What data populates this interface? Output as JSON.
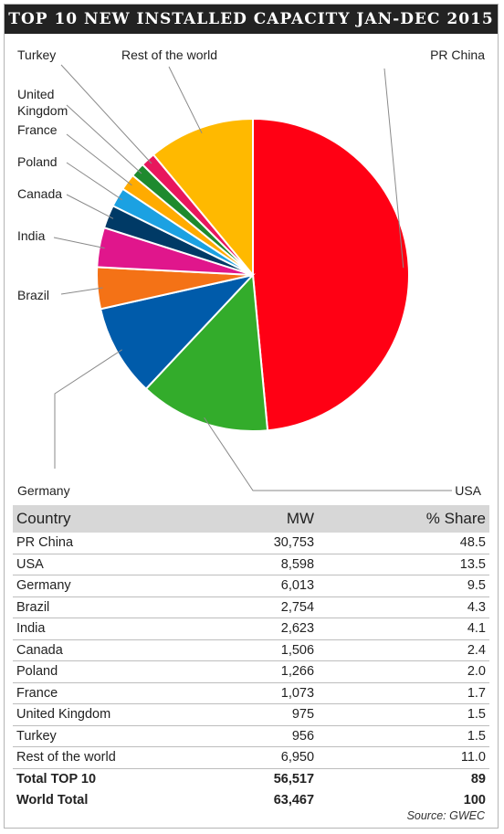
{
  "title": "TOP 10 NEW INSTALLED CAPACITY JAN-DEC 2015",
  "source": "Source: GWEC",
  "colors": {
    "title_bar": "#222222",
    "table_header": "#d7d7d7"
  },
  "chart_data": {
    "type": "pie",
    "title": "TOP 10 NEW INSTALLED CAPACITY JAN-DEC 2015",
    "start_angle_deg": 0,
    "direction": "clockwise",
    "slices": [
      {
        "label": "PR China",
        "value": 48.5,
        "color": "#ff0014"
      },
      {
        "label": "USA",
        "value": 13.5,
        "color": "#33ac2b"
      },
      {
        "label": "Germany",
        "value": 9.5,
        "color": "#005baa"
      },
      {
        "label": "Brazil",
        "value": 4.3,
        "color": "#f47216"
      },
      {
        "label": "India",
        "value": 4.1,
        "color": "#e0168c"
      },
      {
        "label": "Canada",
        "value": 2.4,
        "color": "#003a66"
      },
      {
        "label": "Poland",
        "value": 2.0,
        "color": "#1ba1e2"
      },
      {
        "label": "France",
        "value": 1.7,
        "color": "#ffab00"
      },
      {
        "label": "United Kingdom",
        "value": 1.5,
        "color": "#1e8a2e"
      },
      {
        "label": "Turkey",
        "value": 1.5,
        "color": "#e8175d"
      },
      {
        "label": "Rest of the world",
        "value": 11.0,
        "color": "#ffb900"
      }
    ]
  },
  "table": {
    "headers": [
      "Country",
      "MW",
      "% Share"
    ],
    "rows": [
      {
        "country": "PR China",
        "mw": "30,753",
        "share": "48.5"
      },
      {
        "country": "USA",
        "mw": "8,598",
        "share": "13.5"
      },
      {
        "country": "Germany",
        "mw": "6,013",
        "share": "9.5"
      },
      {
        "country": "Brazil",
        "mw": "2,754",
        "share": "4.3"
      },
      {
        "country": "India",
        "mw": "2,623",
        "share": "4.1"
      },
      {
        "country": "Canada",
        "mw": "1,506",
        "share": "2.4"
      },
      {
        "country": "Poland",
        "mw": "1,266",
        "share": "2.0"
      },
      {
        "country": "France",
        "mw": "1,073",
        "share": "1.7"
      },
      {
        "country": "United Kingdom",
        "mw": "975",
        "share": "1.5"
      },
      {
        "country": "Turkey",
        "mw": "956",
        "share": "1.5"
      },
      {
        "country": "Rest of the world",
        "mw": "6,950",
        "share": "11.0"
      }
    ],
    "totals": [
      {
        "country": "Total TOP 10",
        "mw": "56,517",
        "share": "89"
      },
      {
        "country": "World Total",
        "mw": "63,467",
        "share": "100"
      }
    ]
  }
}
